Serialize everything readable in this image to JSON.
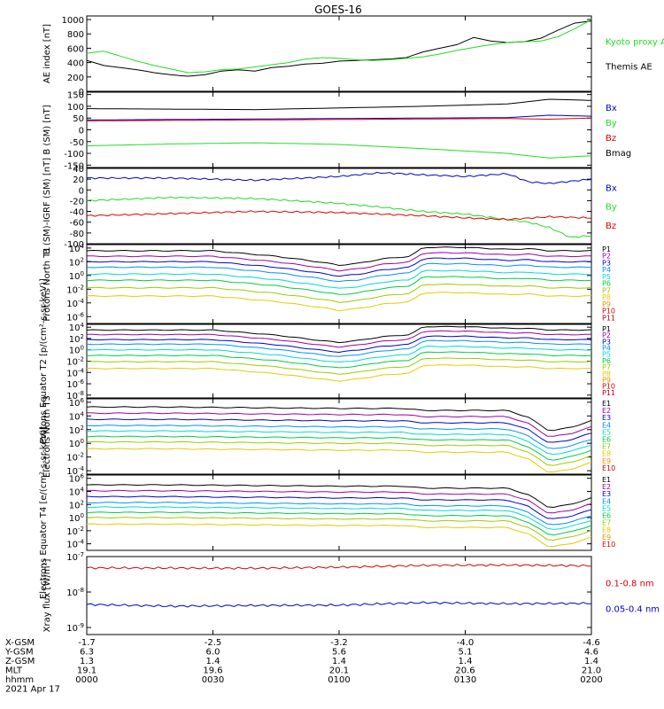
{
  "title": "GOES-16",
  "colors": {
    "black": "#000000",
    "green": "#22dd22",
    "blue": "#0000cc",
    "red": "#dd0000",
    "levels": [
      "#000000",
      "#a000a0",
      "#0000cc",
      "#0090ff",
      "#00d8d8",
      "#00cc44",
      "#9acc00",
      "#e8c800",
      "#ff8c00",
      "#d00000",
      "#b00000"
    ]
  },
  "chart_data": [
    {
      "type": "line",
      "id": "ae",
      "ylabel": "AE index [nT]",
      "yticks": [
        "0",
        "200",
        "400",
        "600",
        "800",
        "1000"
      ],
      "ylim": [
        0,
        1050
      ],
      "log": false,
      "legend": [
        {
          "text": "Kyoto proxy AE",
          "color": "#22dd22"
        },
        {
          "text": "Themis AE",
          "color": "#000000"
        }
      ],
      "series": [
        {
          "name": "Themis AE",
          "color": "#000000",
          "x": [
            0,
            4,
            8,
            12,
            16,
            20,
            24,
            28,
            32,
            36,
            40,
            44,
            48,
            52,
            56,
            60,
            64,
            68,
            72,
            76,
            80,
            84,
            88,
            92,
            96,
            100,
            104,
            108,
            112,
            116,
            120
          ],
          "y": [
            430,
            360,
            330,
            300,
            260,
            230,
            210,
            230,
            280,
            300,
            280,
            330,
            350,
            380,
            390,
            420,
            430,
            440,
            450,
            470,
            550,
            600,
            650,
            750,
            700,
            680,
            690,
            740,
            850,
            950,
            980
          ]
        },
        {
          "name": "Kyoto proxy AE",
          "color": "#22dd22",
          "x": [
            0,
            4,
            8,
            12,
            16,
            20,
            24,
            28,
            32,
            36,
            40,
            44,
            48,
            52,
            56,
            60,
            64,
            68,
            72,
            76,
            80,
            84,
            88,
            92,
            96,
            100,
            104,
            108,
            112,
            116,
            120
          ],
          "y": [
            530,
            560,
            490,
            420,
            360,
            310,
            260,
            270,
            300,
            310,
            340,
            370,
            400,
            450,
            470,
            460,
            440,
            430,
            440,
            460,
            480,
            520,
            570,
            610,
            650,
            680,
            690,
            700,
            760,
            870,
            1000
          ]
        }
      ]
    },
    {
      "type": "line",
      "id": "b",
      "ylabel": "B (SM) [nT]",
      "yticks": [
        "150",
        "100",
        "50",
        "0",
        "-50",
        "-100",
        "-150"
      ],
      "ylim": [
        -160,
        160
      ],
      "log": false,
      "legend": [
        {
          "text": "Bx",
          "color": "#0000cc"
        },
        {
          "text": "By",
          "color": "#22dd22"
        },
        {
          "text": "Bz",
          "color": "#dd0000"
        },
        {
          "text": "Bmag",
          "color": "#000000"
        }
      ],
      "series": [
        {
          "name": "Bmag",
          "color": "#000000",
          "x": [
            0,
            20,
            40,
            60,
            80,
            100,
            110,
            120
          ],
          "y": [
            90,
            88,
            86,
            93,
            100,
            110,
            130,
            125
          ]
        },
        {
          "name": "Bx",
          "color": "#0000cc",
          "x": [
            0,
            20,
            40,
            60,
            80,
            100,
            110,
            120
          ],
          "y": [
            42,
            44,
            46,
            48,
            50,
            52,
            62,
            58
          ]
        },
        {
          "name": "Bz",
          "color": "#dd0000",
          "x": [
            0,
            20,
            40,
            60,
            80,
            100,
            110,
            120
          ],
          "y": [
            38,
            40,
            42,
            44,
            46,
            48,
            45,
            50
          ]
        },
        {
          "name": "By",
          "color": "#22dd22",
          "x": [
            0,
            20,
            40,
            60,
            80,
            100,
            110,
            120
          ],
          "y": [
            -68,
            -60,
            -55,
            -62,
            -80,
            -100,
            -120,
            -110
          ]
        }
      ]
    },
    {
      "type": "line",
      "id": "bdiff",
      "ylabel": "B (SM)-IGRF (SM) [nT]",
      "yticks": [
        "40",
        "20",
        "0",
        "-20",
        "-40",
        "-60",
        "-80",
        "-100"
      ],
      "ylim": [
        -100,
        40
      ],
      "log": false,
      "legend": [
        {
          "text": "Bx",
          "color": "#0000cc"
        },
        {
          "text": "By",
          "color": "#22dd22"
        },
        {
          "text": "Bz",
          "color": "#dd0000"
        }
      ],
      "series": [
        {
          "name": "Bx",
          "color": "#0000cc",
          "x": [
            0,
            20,
            40,
            60,
            70,
            80,
            90,
            100,
            105,
            110,
            120
          ],
          "y": [
            22,
            22,
            18,
            25,
            32,
            28,
            25,
            30,
            15,
            12,
            20
          ]
        },
        {
          "name": "By",
          "color": "#22dd22",
          "x": [
            0,
            20,
            40,
            60,
            70,
            80,
            90,
            100,
            105,
            110,
            115,
            120
          ],
          "y": [
            -20,
            -14,
            -16,
            -25,
            -32,
            -40,
            -45,
            -55,
            -60,
            -70,
            -88,
            -85
          ]
        },
        {
          "name": "Bz",
          "color": "#dd0000",
          "x": [
            0,
            20,
            40,
            60,
            70,
            80,
            90,
            100,
            110,
            120
          ],
          "y": [
            -48,
            -44,
            -40,
            -42,
            -45,
            -48,
            -52,
            -55,
            -50,
            -52
          ]
        }
      ]
    },
    {
      "type": "line",
      "id": "pt1",
      "ylabel": "Protons North T1",
      "yticks": [
        "10^4",
        "10^2",
        "10^0",
        "10^-2",
        "10^-4",
        "10^-6"
      ],
      "ylim": [
        -7,
        4.5
      ],
      "log": true,
      "legend": [
        "P1",
        "P2",
        "P3",
        "P4",
        "P5",
        "P6",
        "P7",
        "P8",
        "P9",
        "P10",
        "P11"
      ],
      "shape": {
        "x": [
          0,
          15,
          30,
          45,
          55,
          60,
          65,
          70,
          77,
          80,
          90,
          100,
          105,
          110,
          120
        ],
        "y": [
          0,
          0,
          0,
          -0.8,
          -1.6,
          -2.1,
          -1.8,
          -1.2,
          -0.8,
          0.5,
          0.5,
          0.2,
          0.3,
          0,
          0
        ]
      },
      "series": [
        {
          "name": "P1",
          "base": 3.6
        },
        {
          "name": "P2",
          "base": 2.8
        },
        {
          "name": "P3",
          "base": 2.0
        },
        {
          "name": "P4",
          "base": 1.2
        },
        {
          "name": "P5",
          "base": 0.2
        },
        {
          "name": "P6",
          "base": -0.7
        },
        {
          "name": "P7",
          "base": -1.8
        },
        {
          "name": "P8",
          "base": -3.0
        }
      ]
    },
    {
      "type": "line",
      "id": "pt2",
      "ylabel": "Protons Equator T2 [p/(cm²-s-sr-keV)]",
      "yticks": [
        "10^4",
        "10^2",
        "10^0",
        "10^-2",
        "10^-4",
        "10^-6",
        "10^-8"
      ],
      "ylim": [
        -8.5,
        4.5
      ],
      "log": true,
      "legend": [
        "P1",
        "P2",
        "P3",
        "P4",
        "P5",
        "P6",
        "P7",
        "P8",
        "P9",
        "P10",
        "P11"
      ],
      "shape": {
        "x": [
          0,
          15,
          30,
          45,
          55,
          60,
          65,
          70,
          77,
          80,
          90,
          100,
          105,
          110,
          120
        ],
        "y": [
          0,
          0,
          0,
          -0.9,
          -1.8,
          -2.2,
          -1.8,
          -1.2,
          -0.8,
          0.6,
          0.6,
          0.3,
          0.3,
          0,
          0
        ]
      },
      "series": [
        {
          "name": "P1",
          "base": 3.5
        },
        {
          "name": "P2",
          "base": 2.7
        },
        {
          "name": "P3",
          "base": 1.8
        },
        {
          "name": "P4",
          "base": 1.0
        },
        {
          "name": "P5",
          "base": 0.0
        },
        {
          "name": "P6",
          "base": -1.0
        },
        {
          "name": "P7",
          "base": -2.1
        },
        {
          "name": "P8",
          "base": -3.3
        }
      ]
    },
    {
      "type": "line",
      "id": "et3",
      "ylabel": "Electrons North T3",
      "yticks": [
        "10^6",
        "10^4",
        "10^2",
        "10^0",
        "10^-2",
        "10^-4"
      ],
      "ylim": [
        -4.5,
        6.5
      ],
      "log": true,
      "legend": [
        "E1",
        "E2",
        "E3",
        "E4",
        "E5",
        "E6",
        "E7",
        "E8",
        "E9",
        "E10"
      ],
      "shape": {
        "x": [
          0,
          20,
          40,
          60,
          75,
          80,
          100,
          105,
          110,
          115,
          120
        ],
        "y": [
          0,
          0,
          -0.1,
          -0.2,
          -0.2,
          -0.5,
          -0.5,
          -1.5,
          -3.5,
          -3.0,
          -2.0
        ]
      },
      "series": [
        {
          "name": "E1",
          "base": 5.3
        },
        {
          "name": "E2",
          "base": 4.4
        },
        {
          "name": "E3",
          "base": 3.5
        },
        {
          "name": "E4",
          "base": 2.6
        },
        {
          "name": "E5",
          "base": 1.8
        },
        {
          "name": "E6",
          "base": 1.0
        },
        {
          "name": "E7",
          "base": 0.2
        },
        {
          "name": "E8",
          "base": -0.8
        }
      ]
    },
    {
      "type": "line",
      "id": "et4",
      "ylabel": "Electrons Equator T4 [e/(cm²-s-sr-keV)]",
      "yticks": [
        "10^6",
        "10^4",
        "10^2",
        "10^0",
        "10^-2",
        "10^-4"
      ],
      "ylim": [
        -5,
        6.5
      ],
      "log": true,
      "legend": [
        "E1",
        "E2",
        "E3",
        "E4",
        "E5",
        "E6",
        "E7",
        "E8",
        "E9",
        "E10"
      ],
      "shape": {
        "x": [
          0,
          20,
          40,
          60,
          75,
          80,
          100,
          105,
          110,
          115,
          120
        ],
        "y": [
          0,
          0,
          -0.1,
          -0.2,
          -0.2,
          -0.5,
          -0.5,
          -1.5,
          -3.5,
          -3.0,
          -2.0
        ]
      },
      "series": [
        {
          "name": "E1",
          "base": 5.0
        },
        {
          "name": "E2",
          "base": 4.1
        },
        {
          "name": "E3",
          "base": 3.2
        },
        {
          "name": "E4",
          "base": 2.3
        },
        {
          "name": "E5",
          "base": 1.6
        },
        {
          "name": "E6",
          "base": 0.8
        },
        {
          "name": "E7",
          "base": 0.0
        },
        {
          "name": "E8",
          "base": -1.0
        }
      ]
    },
    {
      "type": "line",
      "id": "xray",
      "ylabel": "Xray flux [W/m²]",
      "yticks": [
        "10^-7",
        "10^-8",
        "10^-9"
      ],
      "ylim": [
        -9.2,
        -7
      ],
      "log": true,
      "legend": [
        {
          "text": "0.1-0.8 nm",
          "color": "#dd0000"
        },
        {
          "text": "0.05-0.4 nm",
          "color": "#0000cc"
        }
      ],
      "series": [
        {
          "name": "0.1-0.8 nm",
          "color": "#dd0000",
          "x": [
            0,
            40,
            60,
            80,
            100,
            120
          ],
          "y": [
            -7.32,
            -7.33,
            -7.3,
            -7.25,
            -7.24,
            -7.26
          ]
        },
        {
          "name": "0.05-0.4 nm",
          "color": "#0000cc",
          "x": [
            0,
            20,
            40,
            60,
            80,
            100,
            120
          ],
          "y": [
            -8.35,
            -8.4,
            -8.38,
            -8.37,
            -8.3,
            -8.33,
            -8.32
          ]
        }
      ]
    }
  ],
  "xaxis": {
    "ticks_x": [
      0,
      30,
      60,
      90,
      120
    ],
    "rows": [
      {
        "label": "X-GSM",
        "values": [
          "-1.7",
          "-2.5",
          "-3.2",
          "-4.0",
          "-4.6"
        ]
      },
      {
        "label": "Y-GSM",
        "values": [
          "6.3",
          "6.0",
          "5.6",
          "5.1",
          "4.6"
        ]
      },
      {
        "label": "Z-GSM",
        "values": [
          "1.3",
          "1.4",
          "1.4",
          "1.4",
          "1.4"
        ]
      },
      {
        "label": "MLT",
        "values": [
          "19.1",
          "19.6",
          "20.1",
          "20.6",
          "21.0"
        ]
      },
      {
        "label": "hhmm",
        "values": [
          "0000",
          "0030",
          "0100",
          "0130",
          "0200"
        ]
      }
    ],
    "date": "2021 Apr 17"
  }
}
